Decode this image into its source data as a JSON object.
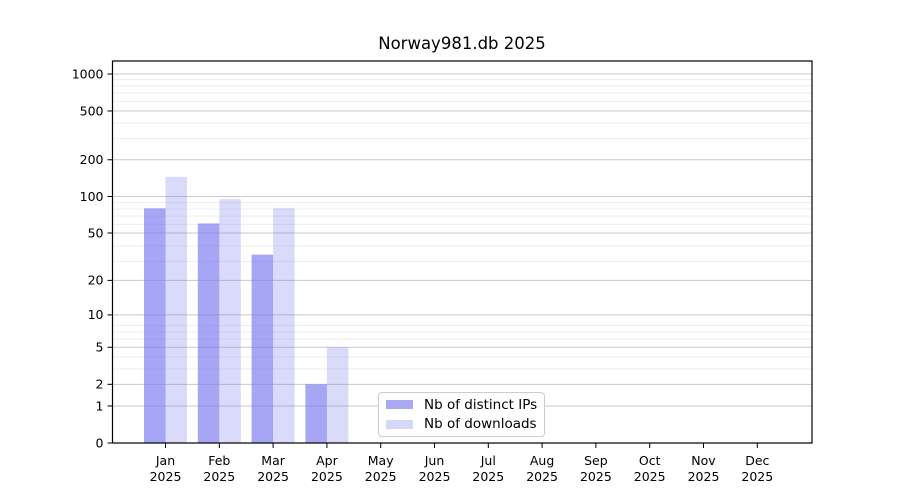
{
  "chart_data": {
    "type": "bar",
    "title": "Norway981.db 2025",
    "year": "2025",
    "categories": [
      "Jan",
      "Feb",
      "Mar",
      "Apr",
      "May",
      "Jun",
      "Jul",
      "Aug",
      "Sep",
      "Oct",
      "Nov",
      "Dec"
    ],
    "series": [
      {
        "name": "Nb of distinct IPs",
        "color": "#7878f0",
        "fill_opacity": 0.66,
        "legend_color": "#a9a9f3",
        "values": [
          80,
          60,
          33,
          2,
          0,
          0,
          0,
          0,
          0,
          0,
          0,
          0
        ]
      },
      {
        "name": "Nb of downloads",
        "color": "#7878f0",
        "fill_opacity": 0.27,
        "legend_color": "#d7d7f9",
        "values": [
          145,
          95,
          80,
          5,
          0,
          0,
          0,
          0,
          0,
          0,
          0,
          0
        ]
      }
    ],
    "y_scale": "log1p",
    "y_ticks": [
      0,
      1,
      2,
      5,
      10,
      20,
      50,
      100,
      200,
      500,
      1000
    ],
    "ylim": [
      0,
      1270
    ],
    "xlabel": "",
    "ylabel": "",
    "grid": true,
    "grid_major_color": "#c9c9c9",
    "grid_minor_color": "#ededed",
    "axis_color": "#000000",
    "legend_position": "lower center"
  }
}
